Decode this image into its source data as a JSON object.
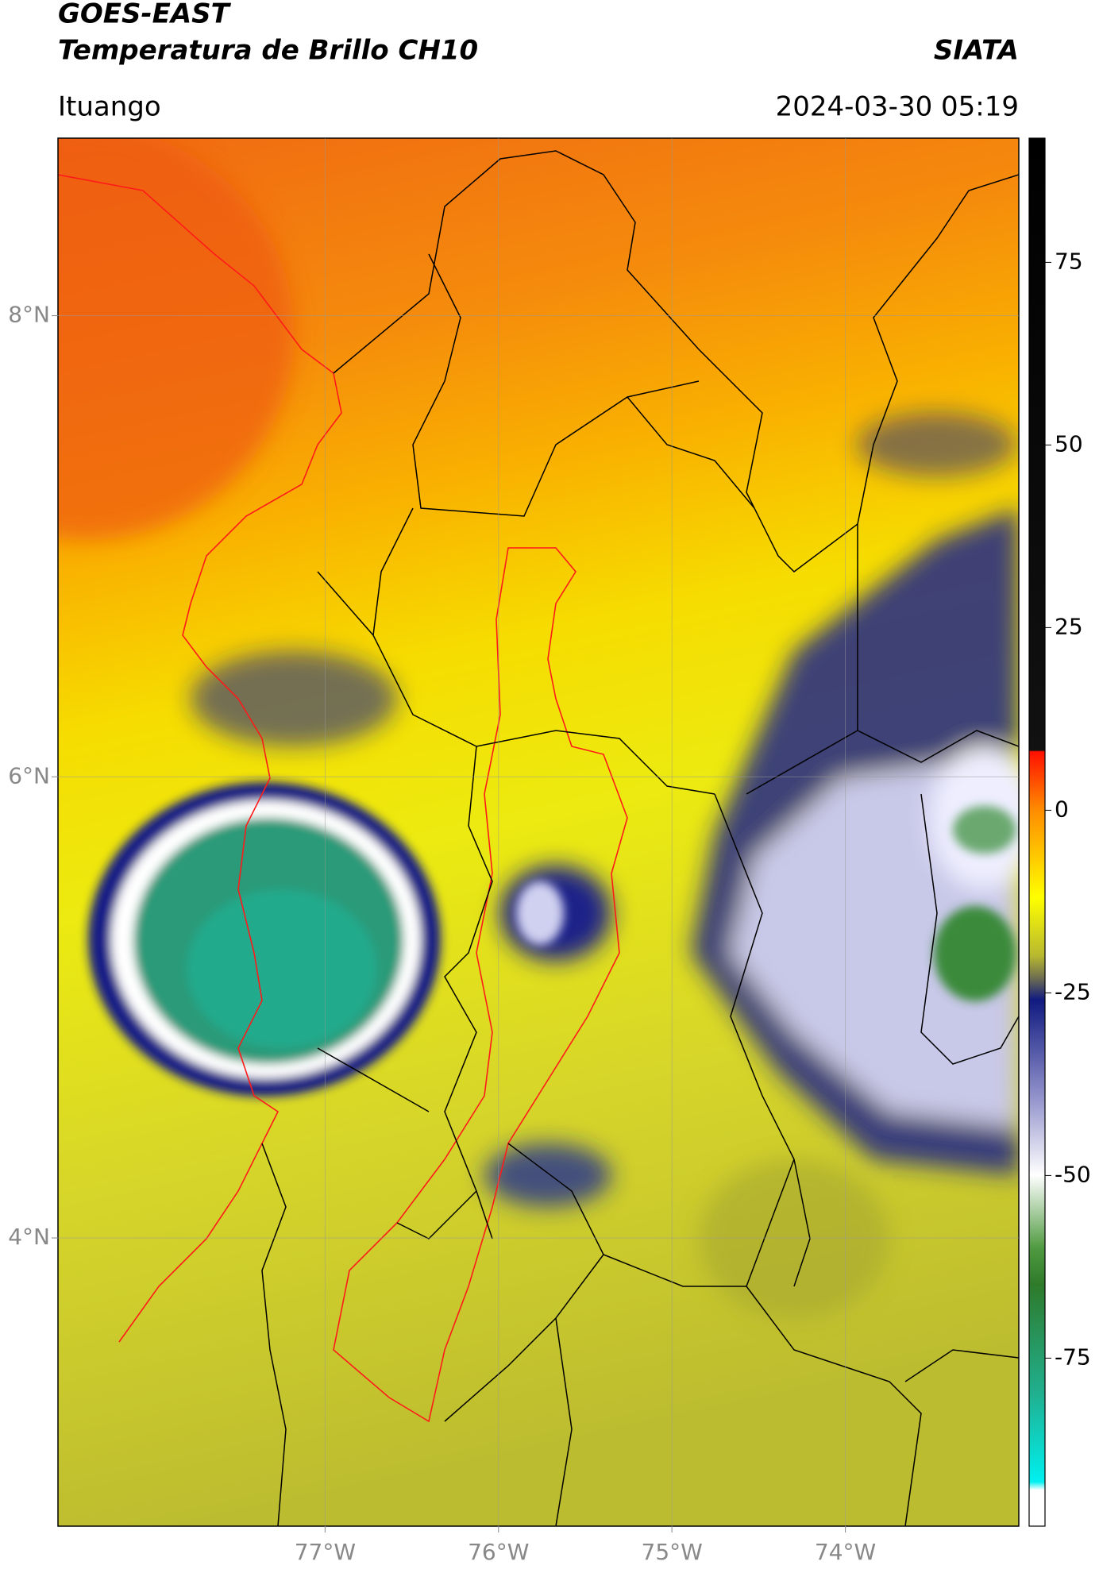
{
  "header": {
    "title": "GOES-EAST",
    "subtitle": "Temperatura de Brillo CH10",
    "source": "SIATA",
    "location": "Ituango",
    "datetime": "2024-03-30 05:19"
  },
  "map": {
    "xlim": [
      -78.54,
      -73.0
    ],
    "ylim": [
      2.75,
      8.77
    ],
    "xticks": [
      {
        "value": -77,
        "label": "77°W"
      },
      {
        "value": -76,
        "label": "76°W"
      },
      {
        "value": -75,
        "label": "75°W"
      },
      {
        "value": -74,
        "label": "74°W"
      }
    ],
    "yticks": [
      {
        "value": 4,
        "label": "4°N"
      },
      {
        "value": 6,
        "label": "6°N"
      },
      {
        "value": 8,
        "label": "8°N"
      }
    ],
    "grid": true
  },
  "colorbar": {
    "lim": [
      -98,
      92
    ],
    "ticks": [
      75,
      50,
      25,
      0,
      -25,
      -50,
      -75
    ]
  }
}
